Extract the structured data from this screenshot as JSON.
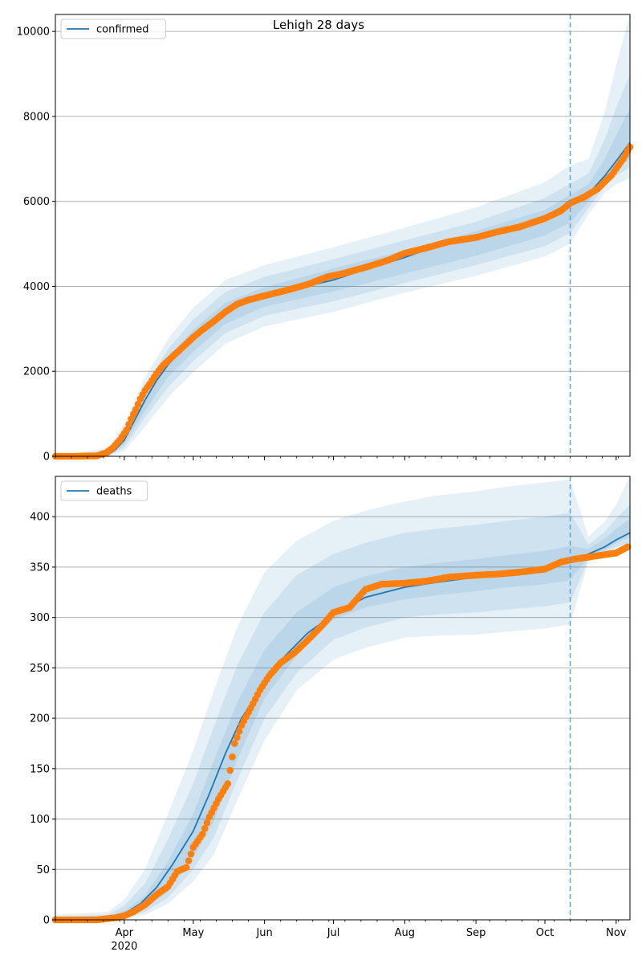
{
  "figure": {
    "title": "Lehigh 28 days"
  },
  "colors": {
    "model_line": "#1f77b4",
    "observed_points": "#ff7f0e",
    "band": "#1f77b4",
    "grid": "#b0b0b0",
    "forecast_line": "#5fa2d6"
  },
  "chart_data": [
    {
      "type": "line",
      "title": "Lehigh 28 days",
      "legend": {
        "placement": "top-left",
        "entries": [
          "confirmed"
        ]
      },
      "grid": "horizontal",
      "x_type": "date",
      "xlim": [
        "2020-03-02",
        "2020-11-07"
      ],
      "x_tick_labels": [
        {
          "date": "2020-04-01",
          "label": "Apr",
          "sublabel": "2020"
        },
        {
          "date": "2020-05-01",
          "label": "May"
        },
        {
          "date": "2020-06-01",
          "label": "Jun"
        },
        {
          "date": "2020-07-01",
          "label": "Jul"
        },
        {
          "date": "2020-08-01",
          "label": "Aug"
        },
        {
          "date": "2020-09-01",
          "label": "Sep"
        },
        {
          "date": "2020-10-01",
          "label": "Oct"
        },
        {
          "date": "2020-11-01",
          "label": "Nov"
        }
      ],
      "ylim": [
        0,
        10400
      ],
      "y_ticks": [
        0,
        2000,
        4000,
        6000,
        8000,
        10000
      ],
      "forecast_start": "2020-10-12",
      "series": [
        {
          "name": "confirmed",
          "kind": "model",
          "x": [
            "2020-03-02",
            "2020-03-20",
            "2020-03-25",
            "2020-03-28",
            "2020-04-01",
            "2020-04-05",
            "2020-04-10",
            "2020-04-15",
            "2020-04-20",
            "2020-04-25",
            "2020-05-01",
            "2020-05-08",
            "2020-05-15",
            "2020-05-22",
            "2020-06-01",
            "2020-06-15",
            "2020-07-01",
            "2020-07-15",
            "2020-08-01",
            "2020-08-15",
            "2020-09-01",
            "2020-09-15",
            "2020-10-01",
            "2020-10-12",
            "2020-10-20",
            "2020-10-27",
            "2020-11-01",
            "2020-11-07"
          ],
          "y": [
            0,
            0,
            40,
            150,
            380,
            800,
            1320,
            1780,
            2150,
            2450,
            2760,
            3100,
            3380,
            3600,
            3780,
            3950,
            4150,
            4400,
            4680,
            4950,
            5150,
            5350,
            5650,
            5970,
            6180,
            6600,
            6950,
            7380
          ]
        },
        {
          "name": "confirmed",
          "kind": "observed",
          "x": [
            "2020-03-02",
            "2020-03-10",
            "2020-03-20",
            "2020-03-24",
            "2020-03-27",
            "2020-03-30",
            "2020-04-02",
            "2020-04-04",
            "2020-04-06",
            "2020-04-08",
            "2020-04-10",
            "2020-04-12",
            "2020-04-15",
            "2020-04-18",
            "2020-04-22",
            "2020-04-26",
            "2020-05-01",
            "2020-05-05",
            "2020-05-10",
            "2020-05-15",
            "2020-05-20",
            "2020-05-25",
            "2020-06-01",
            "2020-06-10",
            "2020-06-20",
            "2020-06-28",
            "2020-07-05",
            "2020-07-15",
            "2020-07-25",
            "2020-08-01",
            "2020-08-10",
            "2020-08-20",
            "2020-09-01",
            "2020-09-10",
            "2020-09-20",
            "2020-10-01",
            "2020-10-08",
            "2020-10-12",
            "2020-10-18",
            "2020-10-24",
            "2020-10-30",
            "2020-11-04",
            "2020-11-07"
          ],
          "y": [
            0,
            0,
            10,
            80,
            200,
            380,
            620,
            880,
            1100,
            1350,
            1550,
            1700,
            1950,
            2150,
            2350,
            2550,
            2800,
            2980,
            3180,
            3400,
            3580,
            3680,
            3780,
            3900,
            4050,
            4220,
            4300,
            4450,
            4620,
            4780,
            4900,
            5050,
            5150,
            5280,
            5400,
            5600,
            5780,
            5960,
            6100,
            6300,
            6620,
            7000,
            7280
          ]
        }
      ],
      "bands": [
        {
          "x": [
            "2020-03-02",
            "2020-03-25",
            "2020-04-01",
            "2020-04-10",
            "2020-04-20",
            "2020-05-01",
            "2020-05-15",
            "2020-06-01",
            "2020-07-01",
            "2020-08-01",
            "2020-09-01",
            "2020-10-01",
            "2020-10-12",
            "2020-10-20",
            "2020-10-27",
            "2020-11-01",
            "2020-11-07"
          ],
          "lower": [
            0,
            0,
            120,
            700,
            1380,
            1980,
            2650,
            3060,
            3400,
            3850,
            4250,
            4700,
            5000,
            5700,
            6200,
            6400,
            6550
          ],
          "upper": [
            0,
            200,
            760,
            1850,
            2760,
            3500,
            4150,
            4500,
            4920,
            5380,
            5860,
            6450,
            6850,
            7000,
            8100,
            9200,
            10400
          ]
        },
        {
          "x": [
            "2020-03-02",
            "2020-03-25",
            "2020-04-01",
            "2020-04-10",
            "2020-04-20",
            "2020-05-01",
            "2020-05-15",
            "2020-06-01",
            "2020-07-01",
            "2020-08-01",
            "2020-09-01",
            "2020-10-01",
            "2020-10-12",
            "2020-10-20",
            "2020-10-27",
            "2020-11-01",
            "2020-11-07"
          ],
          "lower": [
            0,
            10,
            210,
            910,
            1620,
            2240,
            2900,
            3310,
            3650,
            4080,
            4500,
            4950,
            5250,
            5850,
            6350,
            6600,
            6800
          ],
          "upper": [
            0,
            130,
            620,
            1650,
            2520,
            3220,
            3870,
            4220,
            4640,
            5080,
            5520,
            6080,
            6420,
            6650,
            7450,
            8200,
            9000
          ]
        },
        {
          "x": [
            "2020-03-02",
            "2020-03-25",
            "2020-04-01",
            "2020-04-10",
            "2020-04-20",
            "2020-05-01",
            "2020-05-15",
            "2020-06-01",
            "2020-07-01",
            "2020-08-01",
            "2020-09-01",
            "2020-10-01",
            "2020-10-12",
            "2020-10-20",
            "2020-10-27",
            "2020-11-01",
            "2020-11-07"
          ],
          "lower": [
            0,
            20,
            290,
            1080,
            1860,
            2460,
            3120,
            3520,
            3880,
            4300,
            4720,
            5200,
            5500,
            6000,
            6500,
            6800,
            7000
          ],
          "upper": [
            0,
            80,
            480,
            1450,
            2300,
            2980,
            3620,
            3980,
            4420,
            4850,
            5300,
            5800,
            6150,
            6400,
            7000,
            7550,
            8200
          ]
        }
      ]
    },
    {
      "type": "line",
      "legend": {
        "placement": "top-left",
        "entries": [
          "deaths"
        ]
      },
      "grid": "horizontal",
      "x_type": "date",
      "xlim": [
        "2020-03-02",
        "2020-11-07"
      ],
      "x_tick_labels": [
        {
          "date": "2020-04-01",
          "label": "Apr",
          "sublabel": "2020"
        },
        {
          "date": "2020-05-01",
          "label": "May"
        },
        {
          "date": "2020-06-01",
          "label": "Jun"
        },
        {
          "date": "2020-07-01",
          "label": "Jul"
        },
        {
          "date": "2020-08-01",
          "label": "Aug"
        },
        {
          "date": "2020-09-01",
          "label": "Sep"
        },
        {
          "date": "2020-10-01",
          "label": "Oct"
        },
        {
          "date": "2020-11-01",
          "label": "Nov"
        }
      ],
      "ylim": [
        0,
        440
      ],
      "y_ticks": [
        0,
        50,
        100,
        150,
        200,
        250,
        300,
        350,
        400
      ],
      "forecast_start": "2020-10-12",
      "series": [
        {
          "name": "deaths",
          "kind": "model",
          "x": [
            "2020-03-02",
            "2020-03-25",
            "2020-04-01",
            "2020-04-08",
            "2020-04-15",
            "2020-04-22",
            "2020-05-01",
            "2020-05-08",
            "2020-05-15",
            "2020-05-22",
            "2020-06-01",
            "2020-06-10",
            "2020-06-20",
            "2020-07-01",
            "2020-07-15",
            "2020-08-01",
            "2020-08-15",
            "2020-09-01",
            "2020-09-15",
            "2020-10-01",
            "2020-10-12",
            "2020-10-20",
            "2020-10-27",
            "2020-11-01",
            "2020-11-07"
          ],
          "y": [
            0,
            1,
            6,
            16,
            32,
            55,
            88,
            125,
            165,
            200,
            235,
            262,
            285,
            303,
            320,
            330,
            335,
            340,
            345,
            350,
            356,
            363,
            370,
            377,
            384
          ]
        },
        {
          "name": "deaths",
          "kind": "observed",
          "x": [
            "2020-03-02",
            "2020-03-20",
            "2020-03-28",
            "2020-04-01",
            "2020-04-05",
            "2020-04-10",
            "2020-04-15",
            "2020-04-20",
            "2020-04-24",
            "2020-04-28",
            "2020-05-01",
            "2020-05-05",
            "2020-05-08",
            "2020-05-12",
            "2020-05-16",
            "2020-05-19",
            "2020-05-22",
            "2020-05-26",
            "2020-05-30",
            "2020-06-03",
            "2020-06-08",
            "2020-06-14",
            "2020-06-20",
            "2020-06-26",
            "2020-07-01",
            "2020-07-08",
            "2020-07-15",
            "2020-07-22",
            "2020-08-01",
            "2020-08-10",
            "2020-08-20",
            "2020-09-01",
            "2020-09-10",
            "2020-09-20",
            "2020-10-01",
            "2020-10-08",
            "2020-10-14",
            "2020-10-20",
            "2020-10-26",
            "2020-11-01",
            "2020-11-06"
          ],
          "y": [
            0,
            0,
            2,
            4,
            8,
            15,
            25,
            33,
            48,
            52,
            72,
            85,
            102,
            120,
            135,
            175,
            193,
            210,
            228,
            242,
            255,
            265,
            278,
            292,
            305,
            310,
            328,
            333,
            334,
            336,
            340,
            342,
            343,
            345,
            348,
            355,
            358,
            360,
            362,
            364,
            370
          ]
        }
      ],
      "bands": [
        {
          "x": [
            "2020-03-02",
            "2020-03-25",
            "2020-04-01",
            "2020-04-10",
            "2020-04-20",
            "2020-05-01",
            "2020-05-10",
            "2020-05-20",
            "2020-06-01",
            "2020-06-15",
            "2020-07-01",
            "2020-07-15",
            "2020-08-01",
            "2020-08-15",
            "2020-09-01",
            "2020-09-15",
            "2020-10-01",
            "2020-10-12",
            "2020-10-20",
            "2020-10-27",
            "2020-11-01",
            "2020-11-07"
          ],
          "lower": [
            0,
            0,
            1,
            5,
            16,
            38,
            65,
            118,
            178,
            228,
            258,
            270,
            280,
            282,
            283,
            286,
            289,
            293,
            356,
            360,
            364,
            368
          ],
          "upper": [
            5,
            8,
            20,
            50,
            105,
            168,
            228,
            290,
            345,
            376,
            396,
            406,
            415,
            421,
            425,
            430,
            434,
            437,
            380,
            395,
            412,
            440
          ]
        },
        {
          "x": [
            "2020-03-02",
            "2020-03-25",
            "2020-04-01",
            "2020-04-10",
            "2020-04-20",
            "2020-05-01",
            "2020-05-10",
            "2020-05-20",
            "2020-06-01",
            "2020-06-15",
            "2020-07-01",
            "2020-07-15",
            "2020-08-01",
            "2020-08-15",
            "2020-09-01",
            "2020-09-15",
            "2020-10-01",
            "2020-10-12",
            "2020-10-20",
            "2020-10-27",
            "2020-11-01",
            "2020-11-07"
          ],
          "lower": [
            0,
            0,
            2,
            8,
            22,
            50,
            82,
            138,
            200,
            245,
            278,
            290,
            300,
            303,
            305,
            308,
            311,
            315,
            358,
            364,
            370,
            374
          ],
          "upper": [
            3,
            5,
            14,
            36,
            80,
            135,
            192,
            252,
            305,
            342,
            363,
            374,
            384,
            388,
            392,
            396,
            400,
            404,
            372,
            385,
            398,
            412
          ]
        },
        {
          "x": [
            "2020-03-02",
            "2020-03-25",
            "2020-04-01",
            "2020-04-10",
            "2020-04-20",
            "2020-05-01",
            "2020-05-10",
            "2020-05-20",
            "2020-06-01",
            "2020-06-15",
            "2020-07-01",
            "2020-07-15",
            "2020-08-01",
            "2020-08-15",
            "2020-09-01",
            "2020-09-15",
            "2020-10-01",
            "2020-10-12",
            "2020-10-20",
            "2020-10-27",
            "2020-11-01",
            "2020-11-07"
          ],
          "lower": [
            0,
            0,
            3,
            11,
            28,
            62,
            98,
            158,
            220,
            262,
            298,
            310,
            318,
            322,
            326,
            330,
            333,
            337,
            360,
            367,
            374,
            380
          ],
          "upper": [
            2,
            3,
            9,
            24,
            58,
            105,
            158,
            215,
            268,
            305,
            330,
            341,
            350,
            354,
            358,
            362,
            366,
            371,
            368,
            378,
            388,
            398
          ]
        }
      ]
    }
  ]
}
